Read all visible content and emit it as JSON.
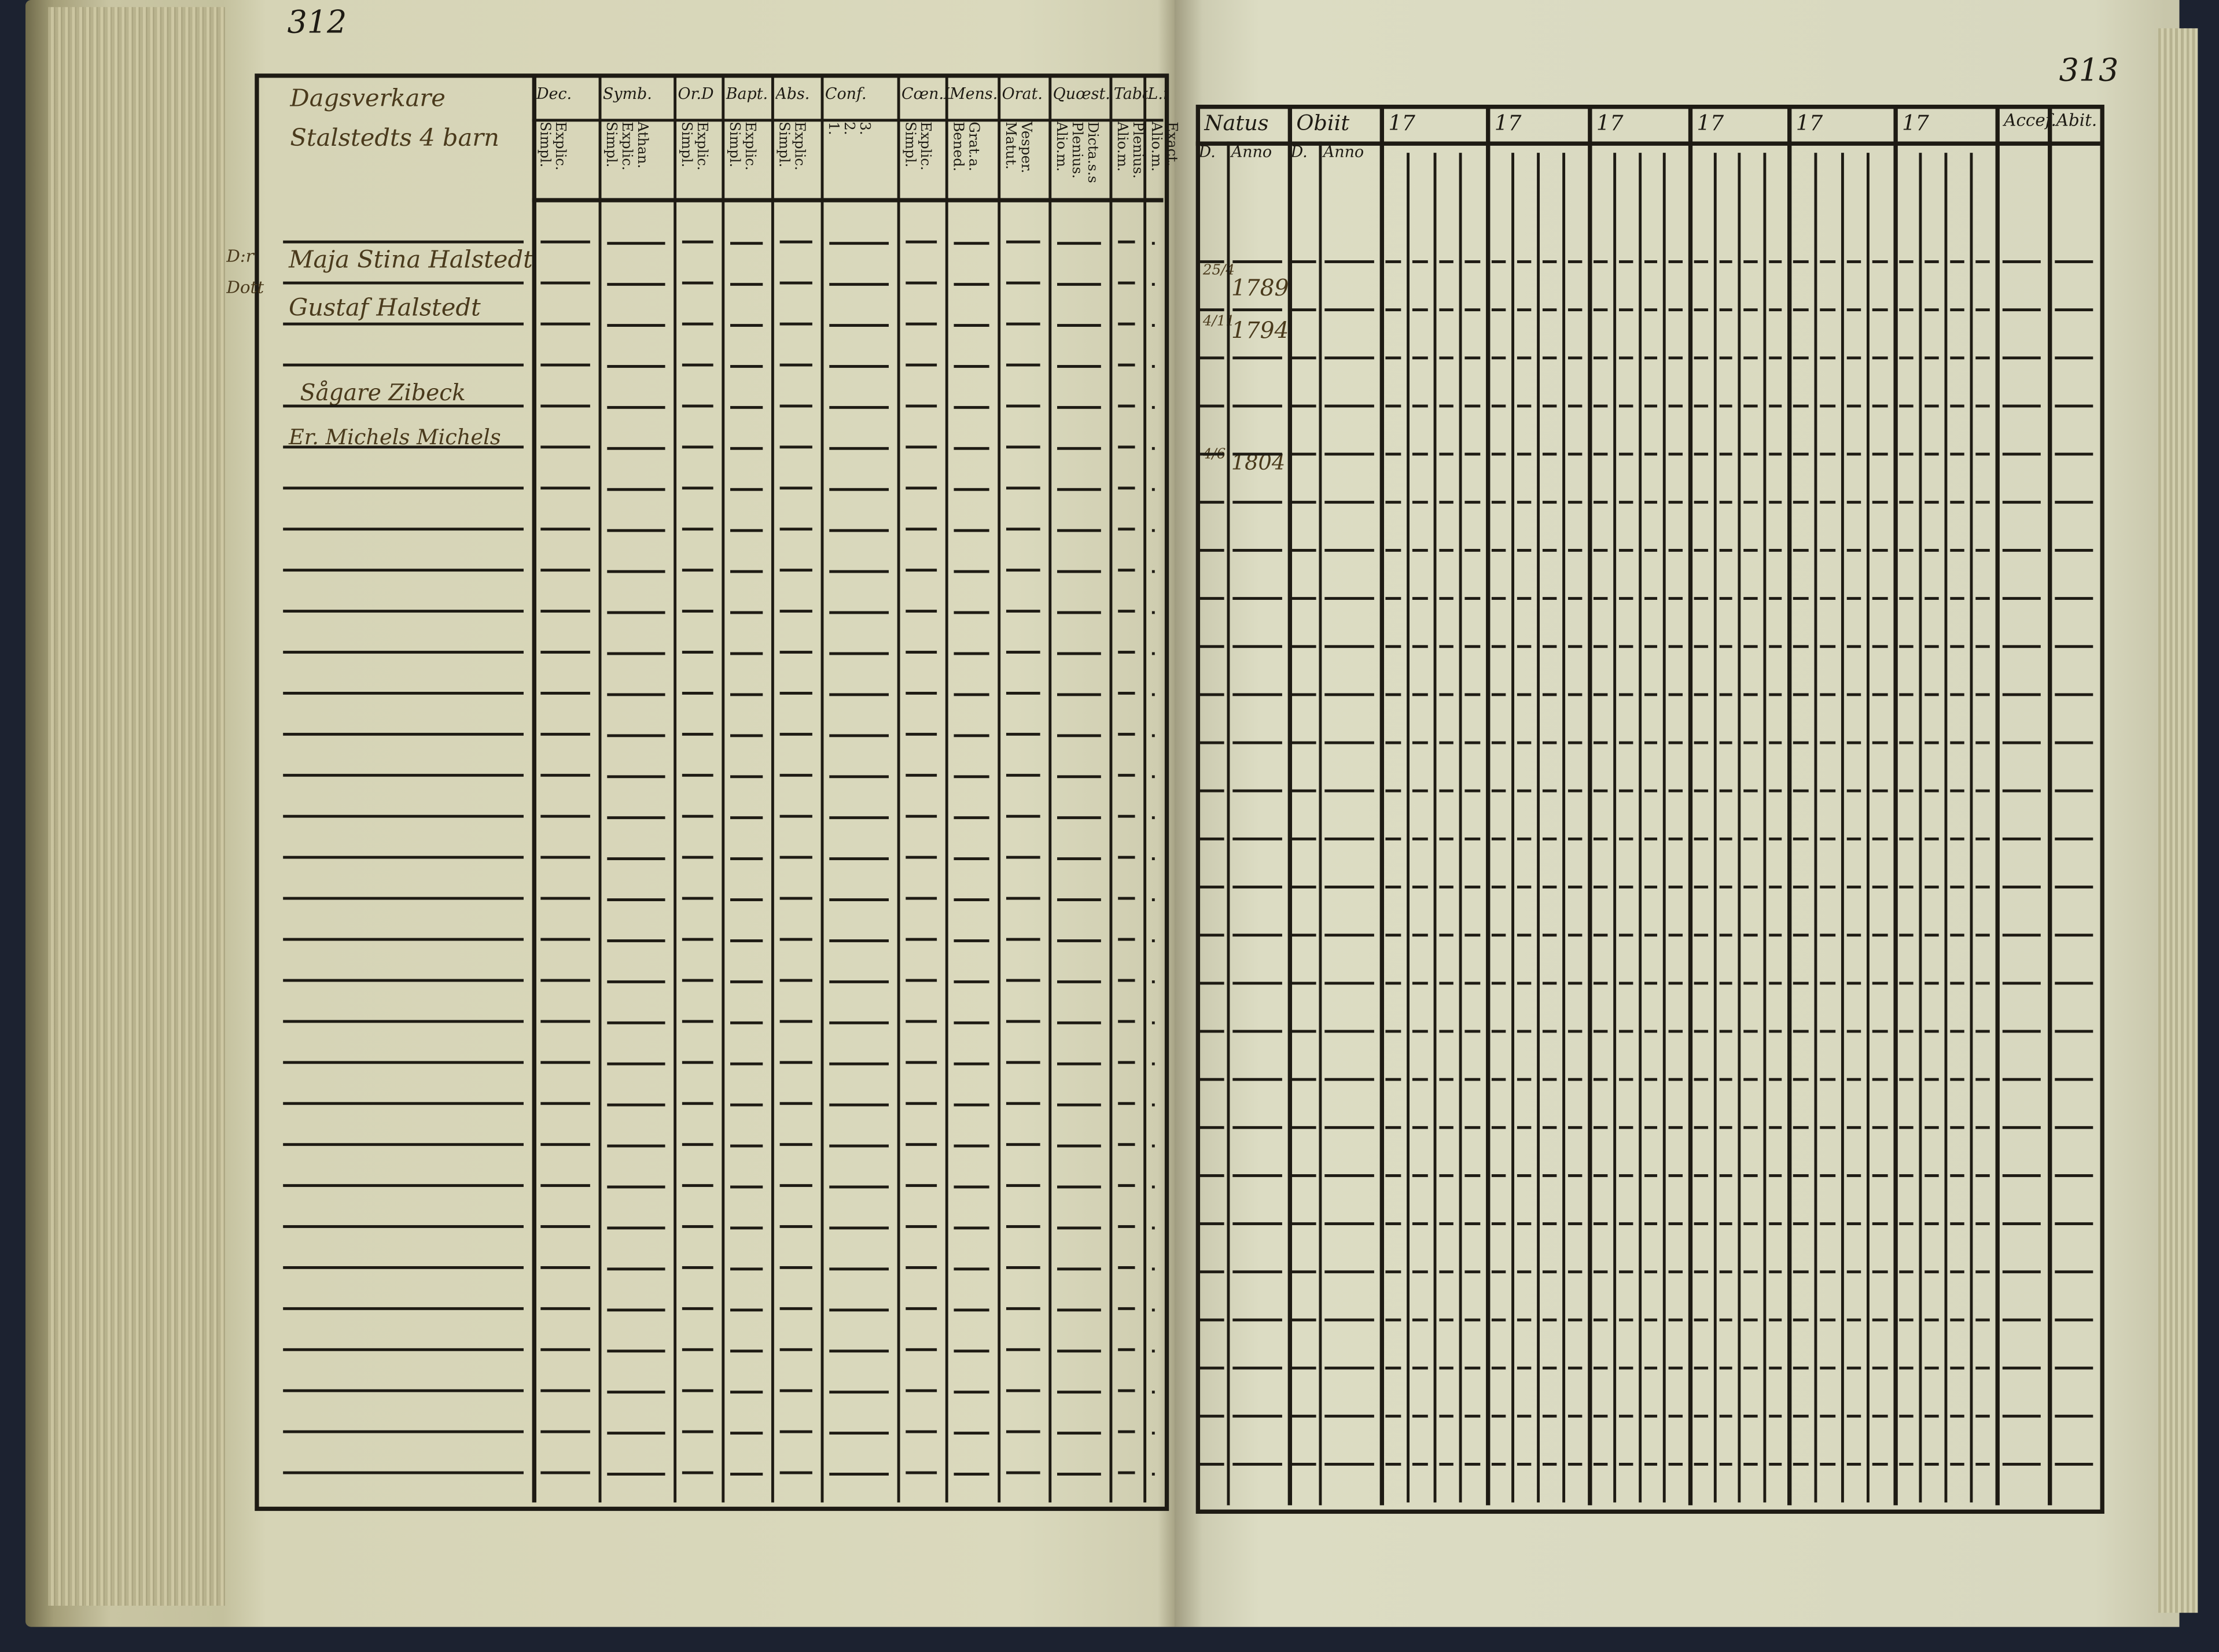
{
  "document": {
    "left_page": {
      "page_number": "312",
      "household_heading": [
        "Dagsverkare",
        "Stalstedts 4 barn"
      ],
      "columns": [
        {
          "label": "Dec.",
          "sub": "Explic.\nSimpl."
        },
        {
          "label": "Symb.",
          "sub": "Athan.\nExplic.\nSimpl."
        },
        {
          "label": "Or.D",
          "sub": "Explic.\nSimpl."
        },
        {
          "label": "Bapt.",
          "sub": "Explic.\nSimpl."
        },
        {
          "label": "Abs.",
          "sub": "Explic.\nSimpl."
        },
        {
          "label": "Conf.",
          "sub": "3.\n2.\n1."
        },
        {
          "label": "Cœn.D",
          "sub": "Explic.\nSimpl."
        },
        {
          "label": "Mens.",
          "sub": "Grat.a.\nBened."
        },
        {
          "label": "Orat.",
          "sub": "Vesper.\nMatut."
        },
        {
          "label": "Quœst.",
          "sub": "Dicta.s.s\nPlenius.\nAlio.m."
        },
        {
          "label": "Taba",
          "sub": "Plenius.\nAlio.m."
        },
        {
          "label": "L.n",
          "sub": "Exact.\nAlio.m."
        }
      ],
      "margin_notes": [
        "D:r",
        "Dott"
      ],
      "entries": [
        {
          "name": "Maja Stina Halstedt"
        },
        {
          "name": "Gustaf Halstedt"
        },
        {
          "name": "Sågare Zibeck"
        },
        {
          "name": "Er. Michels Michels"
        }
      ]
    },
    "right_page": {
      "page_number": "313",
      "columns": [
        {
          "label": "Natus",
          "sub": [
            "D.",
            "Anno"
          ]
        },
        {
          "label": "Obiit",
          "sub": [
            "D.",
            "Anno"
          ]
        },
        {
          "label": "17"
        },
        {
          "label": "17"
        },
        {
          "label": "17"
        },
        {
          "label": "17"
        },
        {
          "label": "17"
        },
        {
          "label": "17"
        },
        {
          "label": "Accef."
        },
        {
          "label": "Abit."
        }
      ],
      "birth_entries": [
        {
          "day": "25/4",
          "year": "1789"
        },
        {
          "day": "4/11",
          "year": "1794"
        },
        {
          "day": "4/6",
          "year": "1804"
        }
      ]
    }
  }
}
